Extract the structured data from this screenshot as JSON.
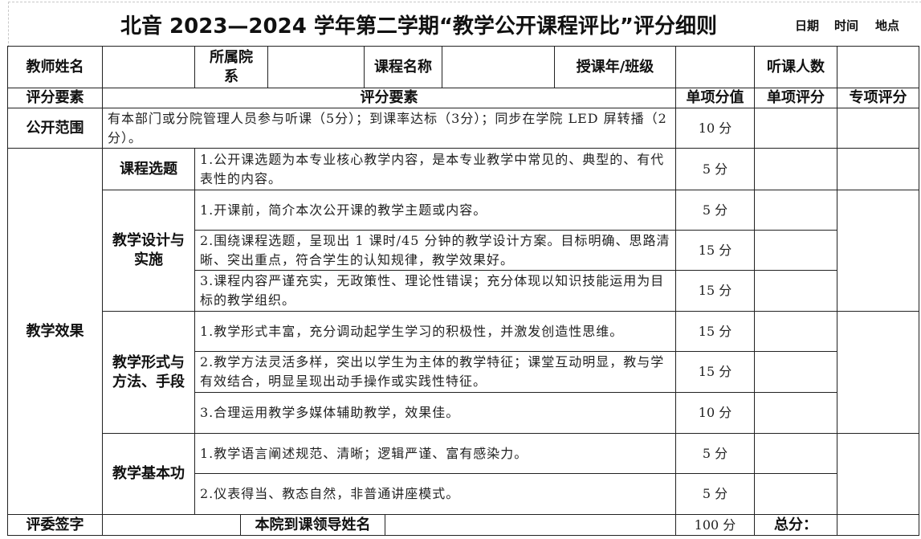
{
  "title": "北音 2023—2024 学年第二学期“教学公开课程评比”评分细则",
  "meta": {
    "date": "日期",
    "time": "时间",
    "place": "地点"
  },
  "header": {
    "teacher": "教师姓名",
    "dept": "所属院系",
    "course": "课程名称",
    "grade": "授课年/班级",
    "listeners": "听课人数"
  },
  "cols": {
    "element": "评分要素",
    "element2": "评分要素",
    "value": "单项分值",
    "item_score": "单项评分",
    "special_score": "专项评分"
  },
  "open_scope": {
    "label": "公开范围",
    "text": "有本部门或分院管理人员参与听课（5分）；到课率达标（3分）；同步在学院 LED 屏转播（2分）。",
    "value": "10 分"
  },
  "effect": {
    "label": "教学效果",
    "groups": [
      {
        "label": "课程选题",
        "items": [
          {
            "text": "1.公开课选题为本专业核心教学内容，是本专业教学中常见的、典型的、有代表性的内容。",
            "value": "5 分"
          }
        ]
      },
      {
        "label": "教学设计与实施",
        "items": [
          {
            "text": "1.开课前，简介本次公开课的教学主题或内容。",
            "value": "5 分"
          },
          {
            "text": "2.围绕课程选题，呈现出 1 课时/45 分钟的教学设计方案。目标明确、思路清晰、突出重点，符合学生的认知规律，教学效果好。",
            "value": "15 分"
          },
          {
            "text": "3.课程内容严谨充实，无政策性、理论性错误；充分体现以知识技能运用为目标的教学组织。",
            "value": "15 分"
          }
        ]
      },
      {
        "label": "教学形式与方法、手段",
        "items": [
          {
            "text": "1.教学形式丰富，充分调动起学生学习的积极性，并激发创造性思维。",
            "value": "15 分"
          },
          {
            "text": "2.教学方法灵活多样，突出以学生为主体的教学特征；课堂互动明显，教与学有效结合，明显呈现出动手操作或实践性特征。",
            "value": "15 分"
          },
          {
            "text": "3.合理运用教学多媒体辅助教学，效果佳。",
            "value": "10 分"
          }
        ]
      },
      {
        "label": "教学基本功",
        "items": [
          {
            "text": "1.教学语言阐述规范、清晰；逻辑严谨、富有感染力。",
            "value": "5 分"
          },
          {
            "text": "2.仪表得当、教态自然，非普通讲座模式。",
            "value": "5 分"
          }
        ]
      }
    ]
  },
  "footer": {
    "judges": "评委签字",
    "leader": "本院到课领导姓名",
    "total_value": "100 分",
    "total": "总分："
  }
}
